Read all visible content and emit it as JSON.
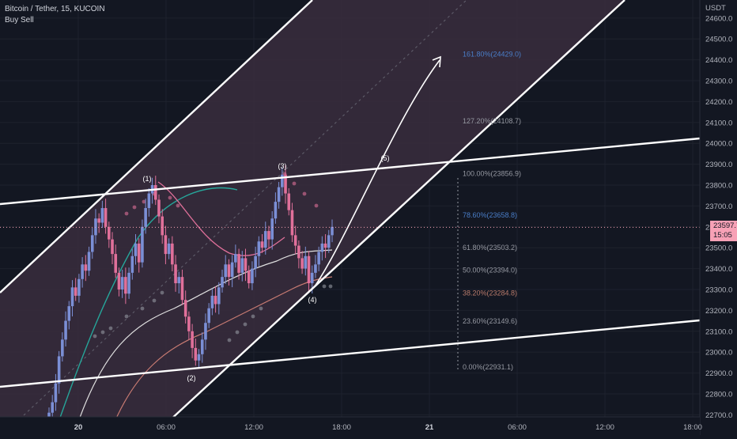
{
  "header": {
    "title": "Bitcoin / Tether, 15, KUCOIN",
    "indicator": "Buy Sell"
  },
  "price_axis": {
    "currency": "USDT",
    "ticks": [
      "24600.0",
      "24500.0",
      "24400.0",
      "24300.0",
      "24200.0",
      "24100.0",
      "24000.0",
      "23900.0",
      "23800.0",
      "23700.0",
      "23600.0",
      "23500.0",
      "23400.0",
      "23300.0",
      "23200.0",
      "23100.0",
      "23000.0",
      "22900.0",
      "22800.0",
      "22700.0"
    ]
  },
  "time_axis": {
    "ticks": [
      "20",
      "06:00",
      "12:00",
      "18:00",
      "21",
      "06:00",
      "12:00",
      "18:00"
    ]
  },
  "last_price": {
    "value": "23597.7",
    "countdown": "15:05"
  },
  "fib_levels": [
    {
      "label": "161.80%(24429.0)",
      "price": 24429.0,
      "color": "#4a7ec9"
    },
    {
      "label": "127.20%(24108.7)",
      "price": 24108.7,
      "color": "#9598a1"
    },
    {
      "label": "100.00%(23856.9)",
      "price": 23856.9,
      "color": "#9598a1"
    },
    {
      "label": "78.60%(23658.8)",
      "price": 23658.8,
      "color": "#4a7ec9"
    },
    {
      "label": "61.80%(23503.2)",
      "price": 23503.2,
      "color": "#9598a1"
    },
    {
      "label": "50.00%(23394.0)",
      "price": 23394.0,
      "color": "#9598a1"
    },
    {
      "label": "38.20%(23284.8)",
      "price": 23284.8,
      "color": "#b87a6a"
    },
    {
      "label": "23.60%(23149.6)",
      "price": 23149.6,
      "color": "#9598a1"
    },
    {
      "label": "0.00%(22931.1)",
      "price": 22931.1,
      "color": "#9598a1"
    }
  ],
  "wave_labels": [
    "(1)",
    "(2)",
    "(3)",
    "(4)",
    "(5)"
  ],
  "colors": {
    "background": "#131722",
    "up_candle": "#7b8fd6",
    "down_candle": "#e0709a",
    "channel_fill": "#3a2d3d",
    "trendline": "#ffffff"
  },
  "chart_data": {
    "type": "candlestick",
    "symbol": "Bitcoin / Tether",
    "interval": "15",
    "exchange": "KUCOIN",
    "ylabel": "USDT",
    "ylim": [
      22690,
      24660
    ],
    "last_price": 23597.7,
    "waves": [
      {
        "label": "(1)",
        "price": 23840
      },
      {
        "label": "(2)",
        "price": 22940
      },
      {
        "label": "(3)",
        "price": 23856.9
      },
      {
        "label": "(4)",
        "price": 23305
      },
      {
        "label": "(5)",
        "price": 23920
      }
    ],
    "closes": [
      22710,
      22760,
      22850,
      22980,
      23060,
      23150,
      23220,
      23310,
      23270,
      23350,
      23420,
      23390,
      23480,
      23560,
      23640,
      23620,
      23690,
      23600,
      23540,
      23470,
      23380,
      23300,
      23360,
      23280,
      23380,
      23460,
      23520,
      23430,
      23600,
      23690,
      23760,
      23800,
      23730,
      23650,
      23560,
      23470,
      23520,
      23420,
      23330,
      23360,
      23250,
      23170,
      23100,
      23020,
      22960,
      22990,
      23060,
      23140,
      23210,
      23270,
      23230,
      23310,
      23360,
      23420,
      23360,
      23430,
      23470,
      23380,
      23450,
      23390,
      23330,
      23400,
      23460,
      23530,
      23500,
      23580,
      23540,
      23640,
      23720,
      23790,
      23850,
      23760,
      23680,
      23560,
      23510,
      23450,
      23400,
      23460,
      23330,
      23380,
      23420,
      23480,
      23520,
      23500,
      23560,
      23600
    ]
  }
}
